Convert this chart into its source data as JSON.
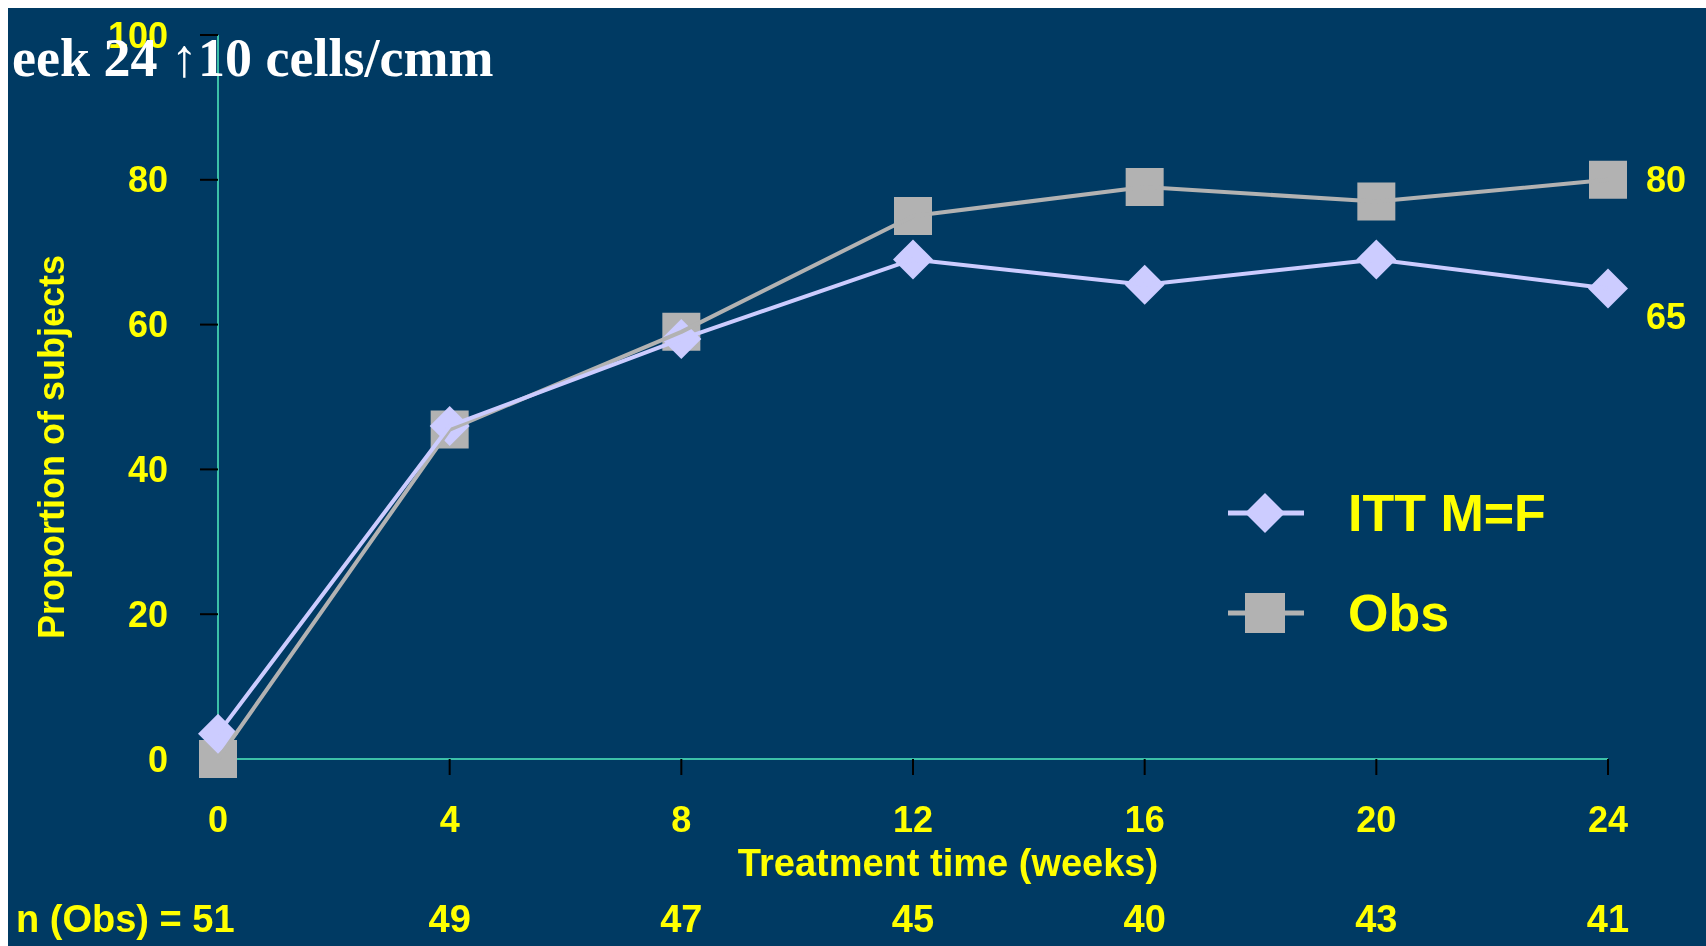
{
  "chart_data": {
    "type": "line",
    "title": "eek 24 ↑10 cells/cmm",
    "xlabel": "Treatment time (weeks)",
    "ylabel": "Proportion of subjects",
    "x": [
      0,
      4,
      8,
      12,
      16,
      20,
      24
    ],
    "xlim": [
      0,
      24
    ],
    "xticks": [
      0,
      4,
      8,
      12,
      16,
      20,
      24
    ],
    "ylim": [
      0,
      100
    ],
    "yticks": [
      0,
      20,
      40,
      60,
      80,
      100
    ],
    "grid": false,
    "legend": "right",
    "line_style": "solid",
    "series": [
      {
        "name": "ITT M=F",
        "color": "#ccccff",
        "marker": "diamond",
        "values": [
          3.5,
          46,
          58,
          69,
          65.5,
          69,
          65
        ],
        "value_labels": [
          null,
          null,
          null,
          null,
          null,
          null,
          "65"
        ]
      },
      {
        "name": "Obs",
        "color": "#b2b2b2",
        "marker": "square",
        "values": [
          0,
          45.5,
          59,
          75,
          79,
          77,
          80
        ],
        "value_labels": [
          null,
          null,
          null,
          null,
          null,
          null,
          "80"
        ]
      }
    ],
    "annotations": [
      "n (Obs) = 51",
      "49",
      "47",
      "45",
      "40",
      "43",
      "41"
    ]
  }
}
